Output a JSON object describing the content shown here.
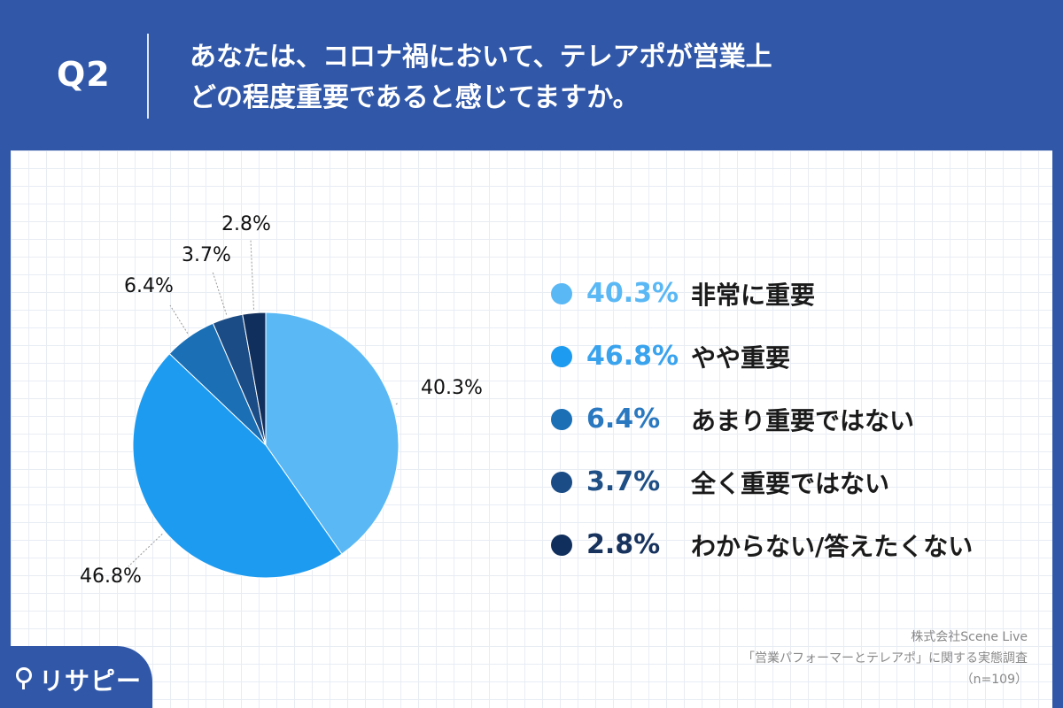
{
  "header": {
    "question_label": "Q2",
    "question_line1": "あなたは、コロナ禍において、テレアポが営業上",
    "question_line2": "どの程度重要であると感じてますか。"
  },
  "chart_data": {
    "type": "pie",
    "slices": [
      {
        "label": "非常に重要",
        "value": 40.3,
        "display": "40.3%",
        "color": "#5ab8f5"
      },
      {
        "label": "やや重要",
        "value": 46.8,
        "display": "46.8%",
        "color": "#1d9bf0"
      },
      {
        "label": "あまり重要ではない",
        "value": 6.4,
        "display": "6.4%",
        "color": "#1a6fb5"
      },
      {
        "label": "全く重要ではない",
        "value": 3.7,
        "display": "3.7%",
        "color": "#1b4c85"
      },
      {
        "label": "わからない/答えたくない",
        "value": 2.8,
        "display": "2.8%",
        "color": "#112f5c"
      }
    ],
    "legend_position": "right",
    "legend_pct_colors": [
      "#5ab8f5",
      "#3aa3ee",
      "#2a78c0",
      "#1f4f85",
      "#17335e"
    ]
  },
  "legend": [
    {
      "pct": "40.3%",
      "text": "非常に重要"
    },
    {
      "pct": "46.8%",
      "text": "やや重要"
    },
    {
      "pct": "6.4%",
      "text": "あまり重要ではない"
    },
    {
      "pct": "3.7%",
      "text": "全く重要ではない"
    },
    {
      "pct": "2.8%",
      "text": "わからない/答えたくない"
    }
  ],
  "source": {
    "company": "株式会社Scene Live",
    "survey": "「営業パフォーマーとテレアポ」に関する実態調査",
    "sample": "（n=109）"
  },
  "logo": {
    "text": "リサピー"
  }
}
